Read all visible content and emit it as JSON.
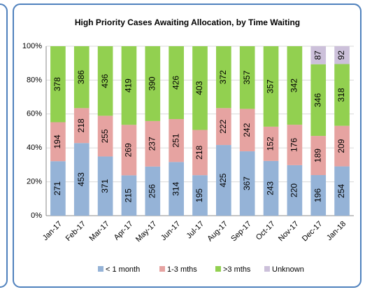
{
  "chart_data": {
    "type": "stacked_bar_100",
    "title": "High Priority Cases Awaiting Allocation, by Time Waiting",
    "categories": [
      "Jan-17",
      "Feb-17",
      "Mar-17",
      "Apr-17",
      "May-17",
      "Jun-17",
      "Jul-17",
      "Aug-17",
      "Sep-17",
      "Oct-17",
      "Nov-17",
      "Dec-17",
      "Jan-18"
    ],
    "series": [
      {
        "name": "< 1 month",
        "color": "#95b3d7",
        "values": [
          271,
          453,
          371,
          215,
          256,
          314,
          195,
          425,
          367,
          243,
          220,
          196,
          254
        ]
      },
      {
        "name": "1-3 mths",
        "color": "#e6a3a1",
        "values": [
          194,
          218,
          255,
          269,
          237,
          251,
          218,
          222,
          242,
          152,
          176,
          189,
          209
        ]
      },
      {
        "name": ">3 mths",
        "color": "#92d050",
        "values": [
          378,
          386,
          436,
          419,
          390,
          426,
          403,
          372,
          357,
          357,
          342,
          346,
          318
        ]
      },
      {
        "name": "Unknown",
        "color": "#ccc0da",
        "values": [
          null,
          null,
          null,
          null,
          null,
          null,
          null,
          null,
          null,
          null,
          null,
          87,
          92
        ]
      }
    ],
    "ylim": [
      0,
      100
    ],
    "yticks": [
      {
        "value": 0,
        "label": "0%"
      },
      {
        "value": 20,
        "label": "20%"
      },
      {
        "value": 40,
        "label": "40%"
      },
      {
        "value": 60,
        "label": "60%"
      },
      {
        "value": 80,
        "label": "80%"
      },
      {
        "value": 100,
        "label": "100%"
      }
    ],
    "grid": true,
    "legend": "bottom"
  }
}
